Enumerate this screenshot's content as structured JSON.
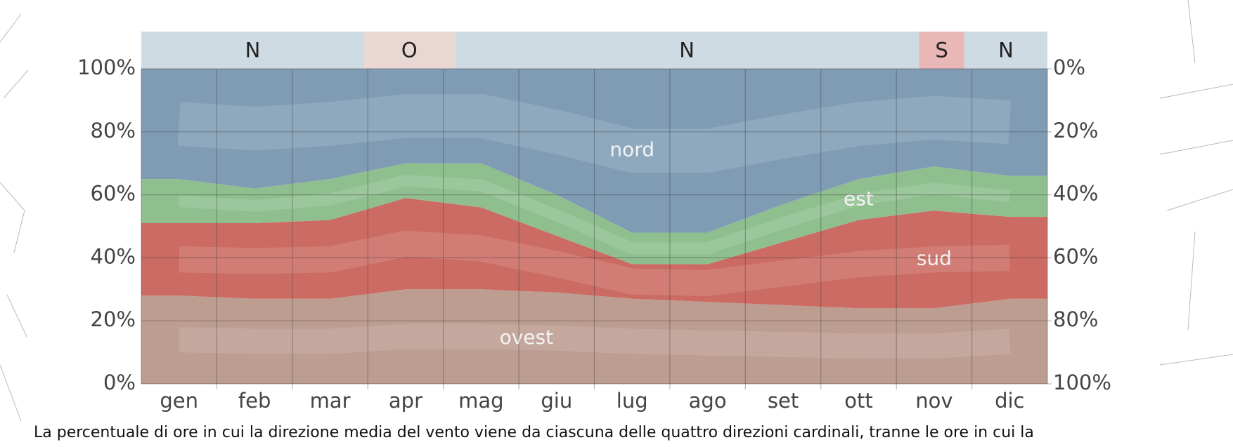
{
  "chart_data": {
    "type": "stacked-area",
    "caption": "La percentuale di ore in cui la direzione media del vento viene da ciascuna  delle quattro direzioni cardinali, tranne le ore in cui la",
    "categories": [
      "gen",
      "feb",
      "mar",
      "apr",
      "mag",
      "giu",
      "lug",
      "ago",
      "set",
      "ott",
      "nov",
      "dic"
    ],
    "series": [
      {
        "name": "ovest",
        "color": "#bc9d90",
        "values": [
          28,
          27,
          27,
          30,
          30,
          29,
          27,
          26,
          25,
          24,
          24,
          27
        ]
      },
      {
        "name": "sud",
        "color": "#cb6b63",
        "values": [
          23,
          24,
          25,
          29,
          26,
          18,
          11,
          12,
          20,
          28,
          31,
          26
        ]
      },
      {
        "name": "est",
        "color": "#8fbf8f",
        "values": [
          14,
          11,
          13,
          11,
          14,
          13,
          10,
          10,
          12,
          13,
          14,
          13
        ]
      },
      {
        "name": "nord",
        "color": "#7f9cb4",
        "values": [
          35,
          38,
          35,
          30,
          30,
          40,
          52,
          52,
          43,
          35,
          31,
          34
        ]
      }
    ],
    "ylim": [
      0,
      100
    ],
    "yticks": [
      {
        "value": 0,
        "label": "0%"
      },
      {
        "value": 20,
        "label": "20%"
      },
      {
        "value": 40,
        "label": "40%"
      },
      {
        "value": 60,
        "label": "60%"
      },
      {
        "value": 80,
        "label": "80%"
      },
      {
        "value": 100,
        "label": "100%"
      }
    ],
    "y2lim": [
      100,
      0
    ],
    "y2ticks": [
      {
        "value": 0,
        "label": "0%"
      },
      {
        "value": 20,
        "label": "20%"
      },
      {
        "value": 40,
        "label": "40%"
      },
      {
        "value": 60,
        "label": "60%"
      },
      {
        "value": 80,
        "label": "80%"
      },
      {
        "value": 100,
        "label": "100%"
      }
    ],
    "grid": true,
    "prevailing": [
      {
        "label": "N",
        "start": 0,
        "end": 2.95,
        "color": "#cfdbe3"
      },
      {
        "label": "O",
        "start": 2.95,
        "end": 4.15,
        "color": "#e8d7d3"
      },
      {
        "label": "N",
        "start": 4.15,
        "end": 10.3,
        "color": "#cfdbe3"
      },
      {
        "label": "S",
        "start": 10.3,
        "end": 10.9,
        "color": "#e9b8b6"
      },
      {
        "label": "N",
        "start": 10.9,
        "end": 12,
        "color": "#cfdbe3"
      }
    ]
  }
}
